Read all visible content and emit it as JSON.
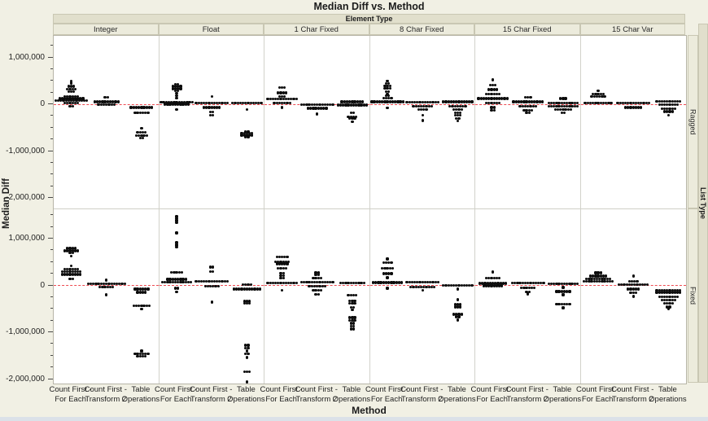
{
  "chart_data": {
    "type": "scatter",
    "subtype": "stacked-dot-plot-with-grouping-panels",
    "title": "Median Diff vs. Method",
    "xlabel": "Method",
    "ylabel": "Median Diff",
    "column_group_label": "Element Type",
    "row_group_label": "List Type",
    "columns": [
      "Integer",
      "Float",
      "1 Char Fixed",
      "8 Char Fixed",
      "15 Char Fixed",
      "15 Char Var"
    ],
    "rows": [
      "Ragged",
      "Fixed"
    ],
    "methods": [
      {
        "name": "Count First - For Each",
        "line1": "Count First -",
        "line2": "For Each"
      },
      {
        "name": "Count First - Transform 2",
        "line1": "Count First -",
        "line2": "Transform 2"
      },
      {
        "name": "Table Operations",
        "line1": "Table",
        "line2": "Operations"
      }
    ],
    "y_ticks": [
      {
        "value": 1000000,
        "label": "1,000,000"
      },
      {
        "value": 0,
        "label": "0"
      },
      {
        "value": -1000000,
        "label": "-1,000,000"
      },
      {
        "value": -2000000,
        "label": "-2,000,000"
      }
    ],
    "y_minor_tick_step": 250000,
    "panel_y_range": {
      "Ragged": [
        -2230000,
        1470000
      ],
      "Fixed": [
        -2090000,
        1630000
      ]
    },
    "zero_reference_line": {
      "value": 0,
      "style": "dashed",
      "color": "#ee4b52"
    },
    "legend": "none",
    "grid": "off",
    "cluster_format": "[median_diff_value, point_count]",
    "points": {
      "Ragged": {
        "Integer": {
          "Count First - For Each": [
            [
              500000,
              1
            ],
            [
              460000,
              1
            ],
            [
              390000,
              3
            ],
            [
              330000,
              4
            ],
            [
              280000,
              3
            ],
            [
              180000,
              6
            ],
            [
              130000,
              10
            ],
            [
              90000,
              13
            ],
            [
              40000,
              6
            ],
            [
              -30000,
              2
            ]
          ],
          "Count First - Transform 2": [
            [
              160000,
              2
            ],
            [
              60000,
              10
            ],
            [
              0,
              7
            ]
          ],
          "Table Operations": [
            [
              -60000,
              9
            ],
            [
              -170000,
              6
            ],
            [
              -510000,
              1
            ],
            [
              -590000,
              4
            ],
            [
              -660000,
              5
            ],
            [
              -710000,
              2
            ]
          ]
        },
        "Float": {
          "Count First - For Each": [
            [
              440000,
              2
            ],
            [
              390000,
              4
            ],
            [
              340000,
              4
            ],
            [
              290000,
              2
            ],
            [
              240000,
              1
            ],
            [
              190000,
              1
            ],
            [
              140000,
              1
            ],
            [
              50000,
              13
            ],
            [
              10000,
              10
            ],
            [
              -100000,
              1
            ]
          ],
          "Count First - Transform 2": [
            [
              170000,
              1
            ],
            [
              40000,
              13
            ],
            [
              -60000,
              7
            ],
            [
              -160000,
              2
            ],
            [
              -230000,
              2
            ]
          ],
          "Table Operations": [
            [
              30000,
              12
            ],
            [
              -100000,
              1
            ],
            [
              -570000,
              2
            ],
            [
              -610000,
              5
            ],
            [
              -650000,
              5
            ],
            [
              -690000,
              2
            ]
          ]
        },
        "1 Char Fixed": {
          "Count First - For Each": [
            [
              360000,
              3
            ],
            [
              250000,
              4
            ],
            [
              180000,
              3
            ],
            [
              120000,
              12
            ],
            [
              30000,
              7
            ],
            [
              -60000,
              1
            ]
          ],
          "Count First - Transform 2": [
            [
              0,
              13
            ],
            [
              -80000,
              8
            ],
            [
              -200000,
              1
            ]
          ],
          "Table Operations": [
            [
              60000,
              9
            ],
            [
              -10000,
              12
            ],
            [
              -180000,
              2
            ],
            [
              -260000,
              4
            ],
            [
              -300000,
              3
            ],
            [
              -360000,
              1
            ]
          ]
        },
        "8 Char Fixed": {
          "Count First - For Each": [
            [
              500000,
              1
            ],
            [
              450000,
              2
            ],
            [
              400000,
              3
            ],
            [
              350000,
              3
            ],
            [
              280000,
              2
            ],
            [
              230000,
              1
            ],
            [
              190000,
              2
            ],
            [
              140000,
              4
            ],
            [
              60000,
              13
            ],
            [
              -70000,
              1
            ]
          ],
          "Count First - Transform 2": [
            [
              50000,
              13
            ],
            [
              -40000,
              8
            ],
            [
              -110000,
              4
            ],
            [
              -220000,
              1
            ],
            [
              -340000,
              1
            ]
          ],
          "Table Operations": [
            [
              60000,
              12
            ],
            [
              -40000,
              7
            ],
            [
              -100000,
              4
            ],
            [
              -170000,
              3
            ],
            [
              -220000,
              3
            ],
            [
              -290000,
              2
            ],
            [
              -350000,
              1
            ]
          ]
        },
        "15 Char Fixed": {
          "Count First - For Each": [
            [
              530000,
              1
            ],
            [
              420000,
              3
            ],
            [
              320000,
              4
            ],
            [
              220000,
              6
            ],
            [
              130000,
              12
            ],
            [
              30000,
              6
            ],
            [
              -60000,
              2
            ],
            [
              -120000,
              2
            ]
          ],
          "Count First - Transform 2": [
            [
              160000,
              3
            ],
            [
              60000,
              12
            ],
            [
              -40000,
              7
            ],
            [
              -120000,
              4
            ],
            [
              -180000,
              2
            ]
          ],
          "Table Operations": [
            [
              130000,
              3
            ],
            [
              40000,
              12
            ],
            [
              -30000,
              12
            ],
            [
              -110000,
              7
            ],
            [
              -180000,
              2
            ]
          ]
        },
        "15 Char Var": {
          "Count First - For Each": [
            [
              300000,
              1
            ],
            [
              230000,
              5
            ],
            [
              180000,
              6
            ],
            [
              30000,
              11
            ]
          ],
          "Count First - Transform 2": [
            [
              30000,
              13
            ],
            [
              -60000,
              7
            ]
          ],
          "Table Operations": [
            [
              70000,
              10
            ],
            [
              0,
              8
            ],
            [
              -90000,
              6
            ],
            [
              -150000,
              4
            ],
            [
              -220000,
              1
            ]
          ]
        }
      },
      "Fixed": {
        "Integer": {
          "Count First - For Each": [
            [
              800000,
              4
            ],
            [
              750000,
              6
            ],
            [
              700000,
              2
            ],
            [
              640000,
              1
            ],
            [
              420000,
              1
            ],
            [
              360000,
              6
            ],
            [
              300000,
              8
            ],
            [
              245000,
              8
            ],
            [
              150000,
              2
            ]
          ],
          "Count First - Transform 2": [
            [
              120000,
              1
            ],
            [
              40000,
              15
            ],
            [
              -30000,
              6
            ],
            [
              -190000,
              1
            ]
          ],
          "Table Operations": [
            [
              -70000,
              6
            ],
            [
              -140000,
              4
            ],
            [
              -420000,
              7
            ],
            [
              -490000,
              1
            ],
            [
              -1390000,
              1
            ],
            [
              -1450000,
              6
            ],
            [
              -1500000,
              4
            ]
          ]
        },
        "Float": {
          "Count First - For Each": [
            [
              1480000,
              1
            ],
            [
              1430000,
              1
            ],
            [
              1390000,
              1
            ],
            [
              1350000,
              1
            ],
            [
              1130000,
              1
            ],
            [
              920000,
              1
            ],
            [
              870000,
              1
            ],
            [
              820000,
              1
            ],
            [
              290000,
              5
            ],
            [
              140000,
              8
            ],
            [
              80000,
              12
            ],
            [
              -50000,
              2
            ],
            [
              -130000,
              1
            ]
          ],
          "Count First - Transform 2": [
            [
              400000,
              2
            ],
            [
              300000,
              2
            ],
            [
              90000,
              13
            ],
            [
              -10000,
              6
            ],
            [
              -350000,
              1
            ]
          ],
          "Table Operations": [
            [
              20000,
              4
            ],
            [
              -70000,
              11
            ],
            [
              -330000,
              3
            ],
            [
              -380000,
              3
            ],
            [
              -1270000,
              2
            ],
            [
              -1330000,
              2
            ],
            [
              -1390000,
              1
            ],
            [
              -1450000,
              2
            ],
            [
              -1530000,
              1
            ],
            [
              -1830000,
              3
            ],
            [
              -2050000,
              1
            ]
          ]
        },
        "1 Char Fixed": {
          "Count First - For Each": [
            [
              620000,
              5
            ],
            [
              510000,
              6
            ],
            [
              470000,
              5
            ],
            [
              380000,
              4
            ],
            [
              270000,
              2
            ],
            [
              220000,
              2
            ],
            [
              170000,
              2
            ],
            [
              60000,
              12
            ],
            [
              -90000,
              1
            ]
          ],
          "Count First - Transform 2": [
            [
              280000,
              2
            ],
            [
              230000,
              2
            ],
            [
              160000,
              4
            ],
            [
              80000,
              13
            ],
            [
              -10000,
              7
            ],
            [
              -90000,
              4
            ],
            [
              -180000,
              2
            ]
          ],
          "Table Operations": [
            [
              60000,
              10
            ],
            [
              -200000,
              4
            ],
            [
              -320000,
              3
            ],
            [
              -370000,
              3
            ],
            [
              -460000,
              2
            ],
            [
              -510000,
              1
            ],
            [
              -680000,
              3
            ],
            [
              -740000,
              3
            ],
            [
              -800000,
              2
            ],
            [
              -860000,
              2
            ],
            [
              -920000,
              2
            ]
          ]
        },
        "8 Char Fixed": {
          "Count First - For Each": [
            [
              575000,
              1
            ],
            [
              490000,
              4
            ],
            [
              370000,
              5
            ],
            [
              260000,
              4
            ],
            [
              175000,
              1
            ],
            [
              70000,
              12
            ],
            [
              -50000,
              1
            ]
          ],
          "Count First - Transform 2": [
            [
              80000,
              13
            ],
            [
              -20000,
              10
            ],
            [
              -90000,
              1
            ]
          ],
          "Table Operations": [
            [
              10000,
              12
            ],
            [
              -70000,
              1
            ],
            [
              -295000,
              1
            ],
            [
              -400000,
              3
            ],
            [
              -450000,
              3
            ],
            [
              -610000,
              4
            ],
            [
              -660000,
              2
            ],
            [
              -730000,
              1
            ]
          ]
        },
        "15 Char Fixed": {
          "Count First - For Each": [
            [
              295000,
              1
            ],
            [
              160000,
              6
            ],
            [
              50000,
              11
            ],
            [
              0,
              8
            ]
          ],
          "Count First - Transform 2": [
            [
              60000,
              13
            ],
            [
              -40000,
              6
            ],
            [
              -130000,
              2
            ],
            [
              -175000,
              1
            ]
          ],
          "Table Operations": [
            [
              40000,
              12
            ],
            [
              -35000,
              1
            ],
            [
              -120000,
              6
            ],
            [
              -190000,
              1
            ],
            [
              -390000,
              6
            ],
            [
              -470000,
              1
            ]
          ]
        },
        "15 Char Var": {
          "Count First - For Each": [
            [
              280000,
              3
            ],
            [
              210000,
              7
            ],
            [
              150000,
              10
            ],
            [
              90000,
              12
            ]
          ],
          "Count First - Transform 2": [
            [
              210000,
              1
            ],
            [
              100000,
              4
            ],
            [
              20000,
              12
            ],
            [
              -70000,
              5
            ],
            [
              -150000,
              3
            ],
            [
              -225000,
              1
            ]
          ],
          "Table Operations": [
            [
              -90000,
              10
            ],
            [
              -140000,
              10
            ],
            [
              -230000,
              8
            ],
            [
              -300000,
              6
            ],
            [
              -370000,
              4
            ],
            [
              -450000,
              2
            ],
            [
              -500000,
              1
            ]
          ]
        }
      }
    }
  },
  "colors": {
    "page_background": "#f1f0e4",
    "banner_background": "#e1dfcc",
    "header_cell_background": "#ecebdc",
    "panel_background": "#ffffff",
    "panel_border": "#cfcfc7",
    "dot": "#0b0b0b",
    "zero_line": "#ee4b52",
    "bottom_strip": "#dbe1e8"
  }
}
